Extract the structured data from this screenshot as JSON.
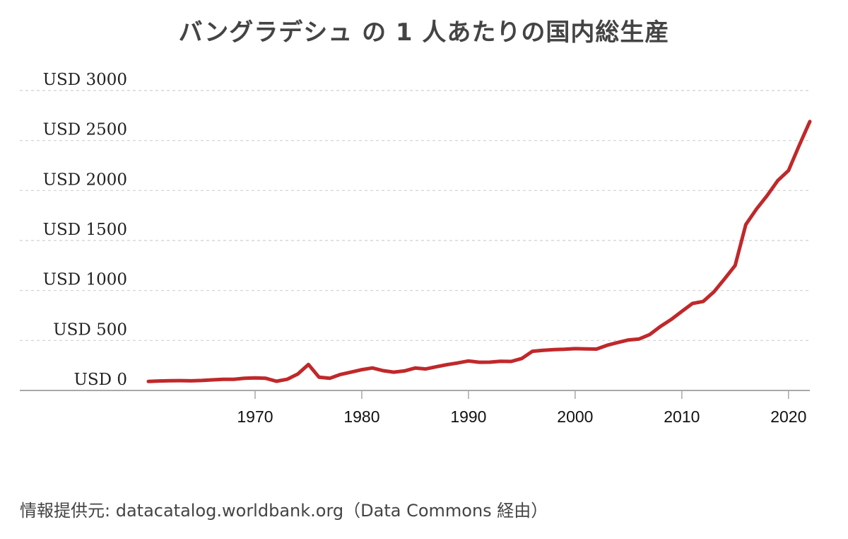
{
  "chart_data": {
    "type": "line",
    "title": "バングラデシュ の 1 人あたりの国内総生産",
    "xlabel": "",
    "ylabel": "",
    "x_ticks": [
      1970,
      1980,
      1990,
      2000,
      2010,
      2020
    ],
    "y_ticks": [
      0,
      500,
      1000,
      1500,
      2000,
      2500,
      3000
    ],
    "y_tick_labels": [
      "USD 0",
      "USD 500",
      "USD 1000",
      "USD 1500",
      "USD 2000",
      "USD 2500",
      "USD 3000"
    ],
    "xlim": [
      1960,
      2022
    ],
    "ylim": [
      0,
      3000
    ],
    "grid": "horizontal dashed",
    "line_color": "#c0282a",
    "series": [
      {
        "x": [
          1960,
          1961,
          1962,
          1963,
          1964,
          1965,
          1966,
          1967,
          1968,
          1969,
          1970,
          1971,
          1972,
          1973,
          1974,
          1975,
          1976,
          1977,
          1978,
          1979,
          1980,
          1981,
          1982,
          1983,
          1984,
          1985,
          1986,
          1987,
          1988,
          1989,
          1990,
          1991,
          1992,
          1993,
          1994,
          1995,
          1996,
          1997,
          1998,
          1999,
          2000,
          2001,
          2002,
          2003,
          2004,
          2005,
          2006,
          2007,
          2008,
          2009,
          2010,
          2011,
          2012,
          2013,
          2014,
          2015,
          2016,
          2017,
          2018,
          2019,
          2020,
          2021,
          2022
        ],
        "y": [
          90,
          95,
          97,
          98,
          96,
          100,
          106,
          112,
          112,
          122,
          126,
          122,
          92,
          112,
          165,
          260,
          132,
          122,
          160,
          183,
          208,
          225,
          198,
          183,
          195,
          224,
          215,
          238,
          258,
          275,
          295,
          282,
          283,
          292,
          290,
          320,
          392,
          402,
          408,
          412,
          418,
          416,
          414,
          452,
          480,
          505,
          515,
          560,
          640,
          710,
          790,
          870,
          890,
          985,
          1115,
          1250,
          1660,
          1815,
          1950,
          2100,
          2200,
          2450,
          2690
        ]
      }
    ]
  },
  "source": "情報提供元: datacatalog.worldbank.org（Data Commons 経由）"
}
